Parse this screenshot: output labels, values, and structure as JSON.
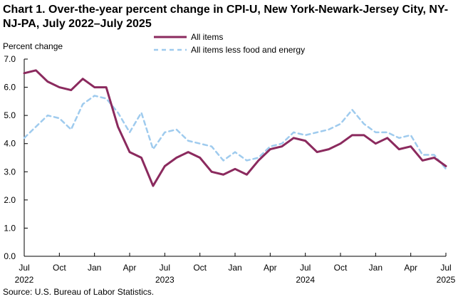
{
  "chart_title": "Chart 1. Over-the-year percent change in CPI-U, New York-Newark-Jersey City, NY-NJ-PA, July 2022–July 2025",
  "source": "Source: U.S. Bureau of Labor Statistics.",
  "colors": {
    "all_items": "#8b2a5e",
    "core": "#9fcbee",
    "axis": "#000000"
  },
  "chart_data": {
    "type": "line",
    "title": "Chart 1. Over-the-year percent change in CPI-U, New York-Newark-Jersey City, NY-NJ-PA, July 2022–July 2025",
    "ylabel": "Percent change",
    "xlabel": "",
    "ylim": [
      0,
      7
    ],
    "yticks": [
      "0.0",
      "1.0",
      "2.0",
      "3.0",
      "4.0",
      "5.0",
      "6.0",
      "7.0"
    ],
    "x_tick_labels": [
      {
        "month": "Jul",
        "year": "2022"
      },
      {
        "month": "Oct",
        "year": ""
      },
      {
        "month": "Jan",
        "year": ""
      },
      {
        "month": "Apr",
        "year": ""
      },
      {
        "month": "Jul",
        "year": "2023"
      },
      {
        "month": "Oct",
        "year": ""
      },
      {
        "month": "Jan",
        "year": ""
      },
      {
        "month": "Apr",
        "year": ""
      },
      {
        "month": "Jul",
        "year": "2024"
      },
      {
        "month": "Oct",
        "year": ""
      },
      {
        "month": "Jan",
        "year": ""
      },
      {
        "month": "Apr",
        "year": ""
      },
      {
        "month": "Jul",
        "year": "2025"
      }
    ],
    "x": [
      "2022-07",
      "2022-08",
      "2022-09",
      "2022-10",
      "2022-11",
      "2022-12",
      "2023-01",
      "2023-02",
      "2023-03",
      "2023-04",
      "2023-05",
      "2023-06",
      "2023-07",
      "2023-08",
      "2023-09",
      "2023-10",
      "2023-11",
      "2023-12",
      "2024-01",
      "2024-02",
      "2024-03",
      "2024-04",
      "2024-05",
      "2024-06",
      "2024-07",
      "2024-08",
      "2024-09",
      "2024-10",
      "2024-11",
      "2024-12",
      "2025-01",
      "2025-02",
      "2025-03",
      "2025-04",
      "2025-05",
      "2025-06",
      "2025-07"
    ],
    "legend_position": "top",
    "grid": false,
    "series": [
      {
        "name": "All items",
        "style": "solid",
        "values": [
          6.5,
          6.6,
          6.2,
          6.0,
          5.9,
          6.3,
          6.0,
          6.0,
          4.6,
          3.7,
          3.5,
          2.5,
          3.2,
          3.5,
          3.7,
          3.5,
          3.0,
          2.9,
          3.1,
          2.9,
          3.4,
          3.8,
          3.9,
          4.2,
          4.1,
          3.7,
          3.8,
          4.0,
          4.3,
          4.3,
          4.0,
          4.2,
          3.8,
          3.9,
          3.4,
          3.5,
          3.2
        ]
      },
      {
        "name": "All items less food and energy",
        "style": "dashed",
        "values": [
          4.2,
          4.6,
          5.0,
          4.9,
          4.5,
          5.4,
          5.7,
          5.6,
          5.1,
          4.4,
          5.1,
          3.8,
          4.4,
          4.5,
          4.1,
          4.0,
          3.9,
          3.4,
          3.7,
          3.4,
          3.5,
          3.9,
          4.0,
          4.4,
          4.3,
          4.4,
          4.5,
          4.7,
          5.2,
          4.7,
          4.4,
          4.4,
          4.2,
          4.3,
          3.6,
          3.6,
          3.1
        ]
      }
    ]
  }
}
